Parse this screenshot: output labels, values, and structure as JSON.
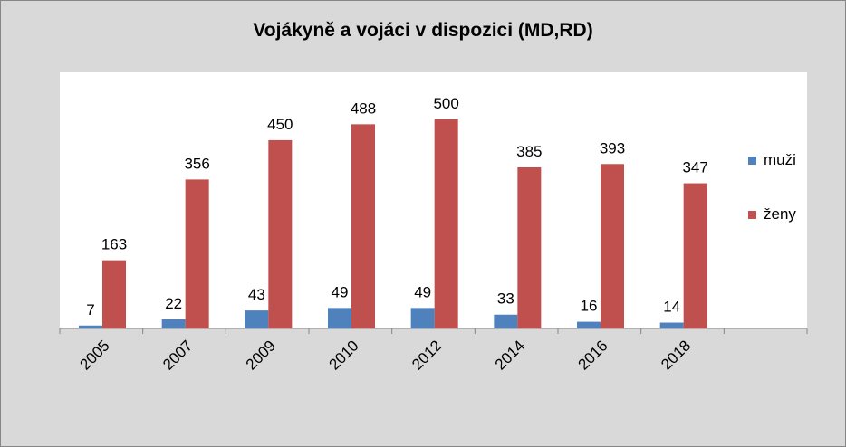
{
  "chart_data": {
    "type": "bar",
    "title": "Vojákyně a vojáci v dispozici (MD,RD)",
    "categories": [
      "2005",
      "2007",
      "2009",
      "2010",
      "2012",
      "2014",
      "2016",
      "2018",
      ""
    ],
    "series": [
      {
        "name": "muži",
        "color": "#4f81bd",
        "values": [
          7,
          22,
          43,
          49,
          49,
          33,
          16,
          14,
          null
        ]
      },
      {
        "name": "ženy",
        "color": "#c0504d",
        "values": [
          163,
          356,
          450,
          488,
          500,
          385,
          393,
          347,
          null
        ]
      }
    ],
    "ylim": [
      0,
      550
    ],
    "grid": false,
    "legend_position": "right"
  }
}
